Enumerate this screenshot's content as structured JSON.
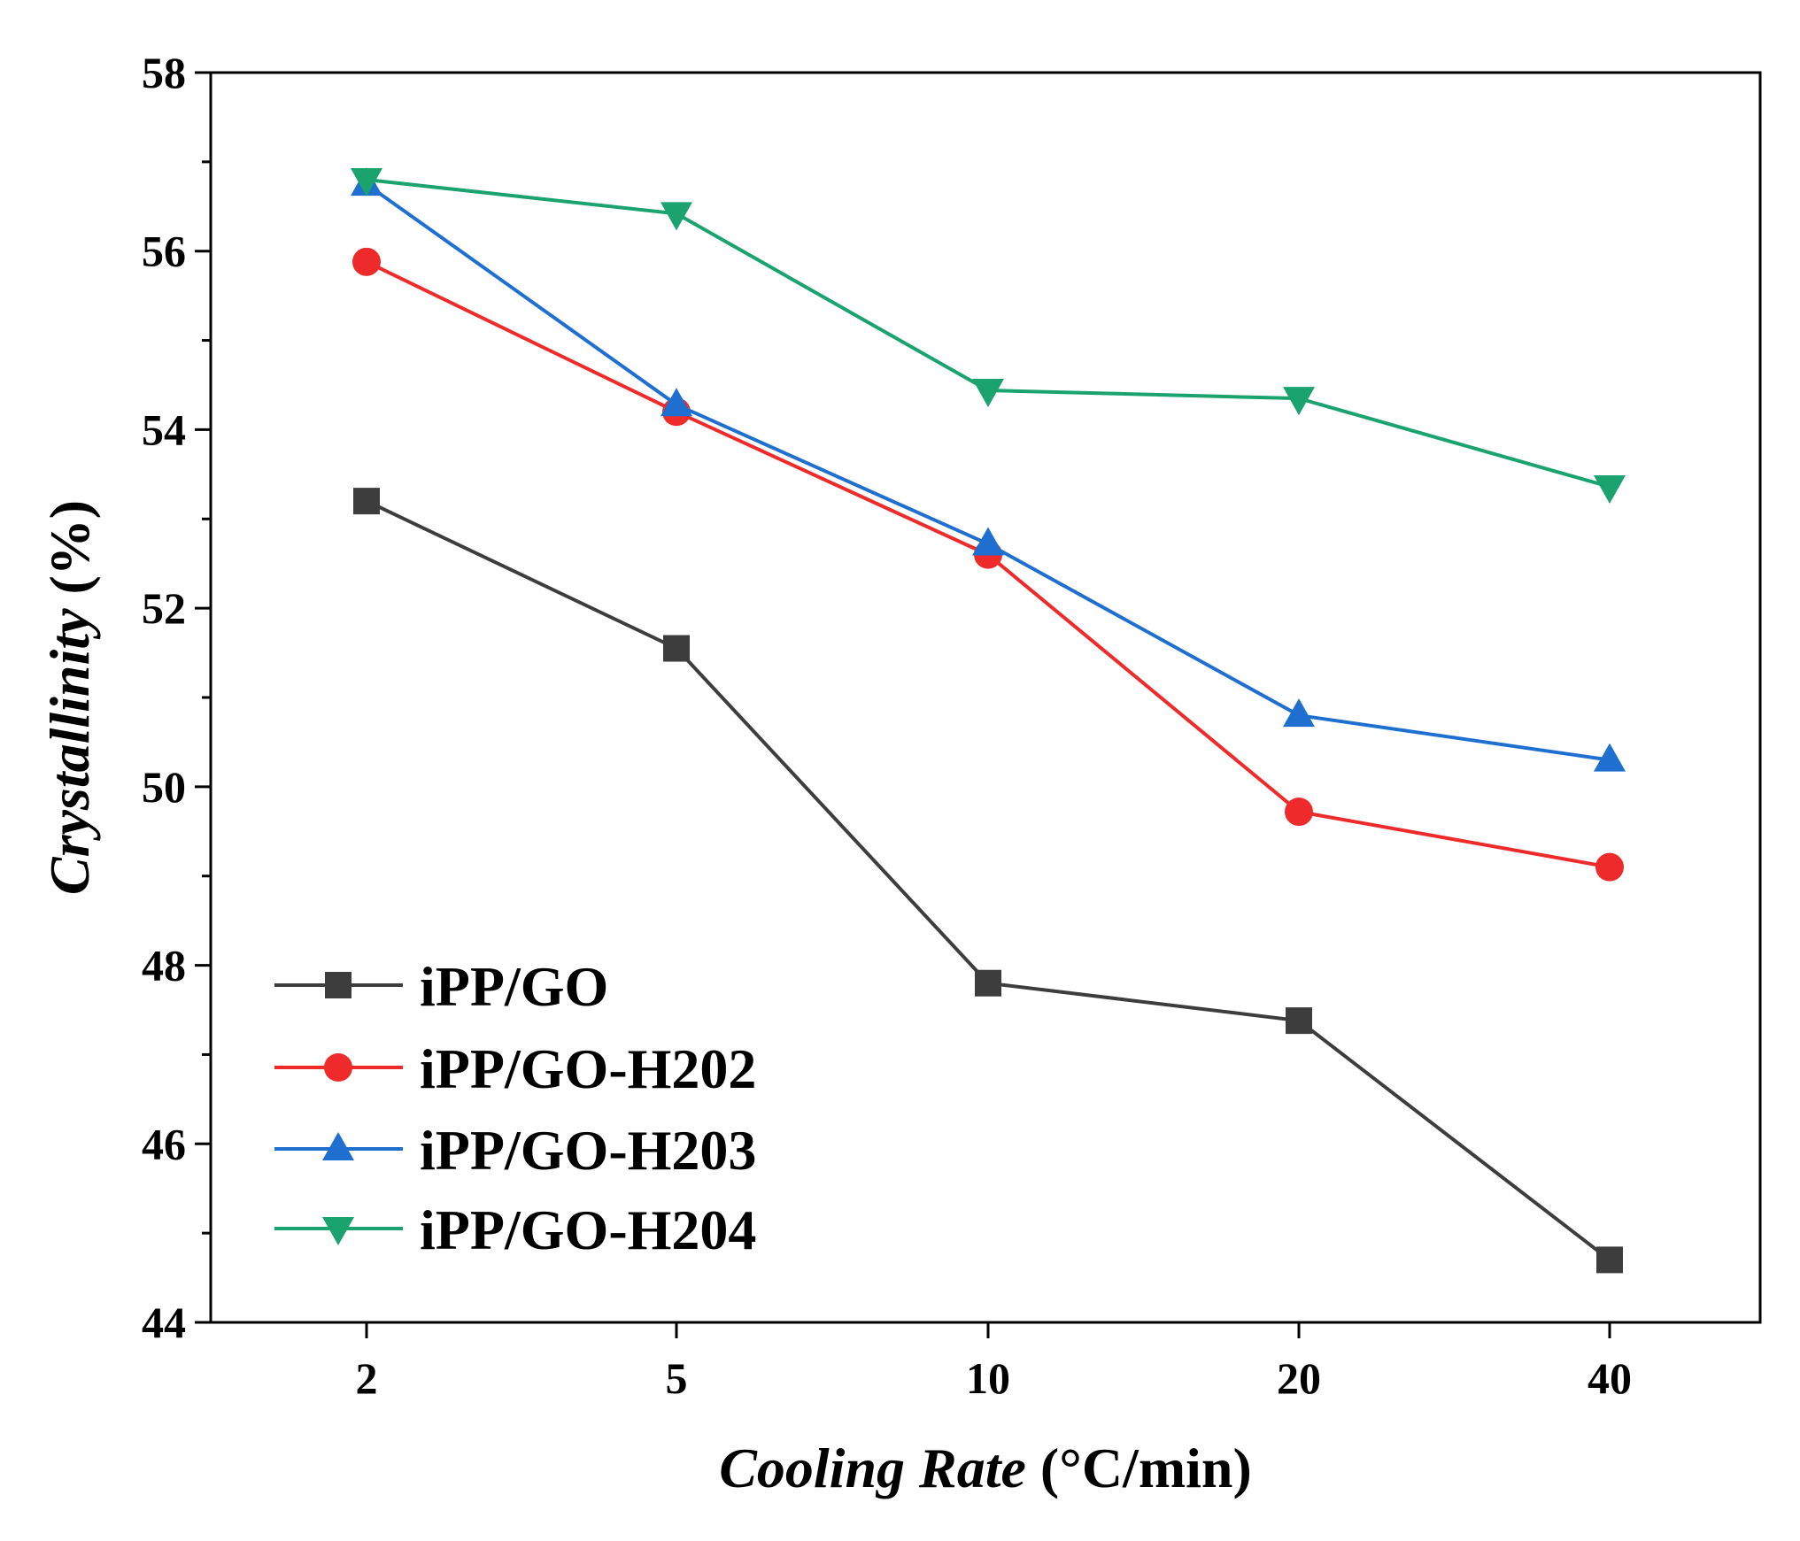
{
  "chart_data": {
    "type": "line",
    "title": "",
    "xlabel": {
      "italic": "Cooling Rate",
      "unit": " (°C/min)"
    },
    "ylabel": {
      "italic": "Crystallinity",
      "unit": " (%)"
    },
    "categories": [
      "2",
      "5",
      "10",
      "20",
      "40"
    ],
    "ylim": [
      44,
      58
    ],
    "yticks_labeled": [
      "44",
      "46",
      "48",
      "50",
      "52",
      "54",
      "56",
      "58"
    ],
    "yticks_minor": [
      45,
      47,
      49,
      51,
      53,
      55,
      57
    ],
    "grid": false,
    "legend_position": "bottom-left",
    "series": [
      {
        "name": "iPP/GO",
        "marker": "square",
        "color": "#3d3d3d",
        "values": [
          53.2,
          51.55,
          47.8,
          47.38,
          44.7
        ]
      },
      {
        "name": "iPP/GO-H202",
        "marker": "circle",
        "color": "#ee2a2a",
        "values": [
          55.88,
          54.2,
          52.6,
          49.72,
          49.1
        ]
      },
      {
        "name": "iPP/GO-H203",
        "marker": "triangle-up",
        "color": "#1f6fd1",
        "values": [
          56.75,
          54.28,
          52.72,
          50.8,
          50.3
        ]
      },
      {
        "name": "iPP/GO-H204",
        "marker": "triangle-down",
        "color": "#1aa36e",
        "values": [
          56.8,
          56.42,
          54.44,
          54.35,
          53.36
        ]
      }
    ]
  }
}
